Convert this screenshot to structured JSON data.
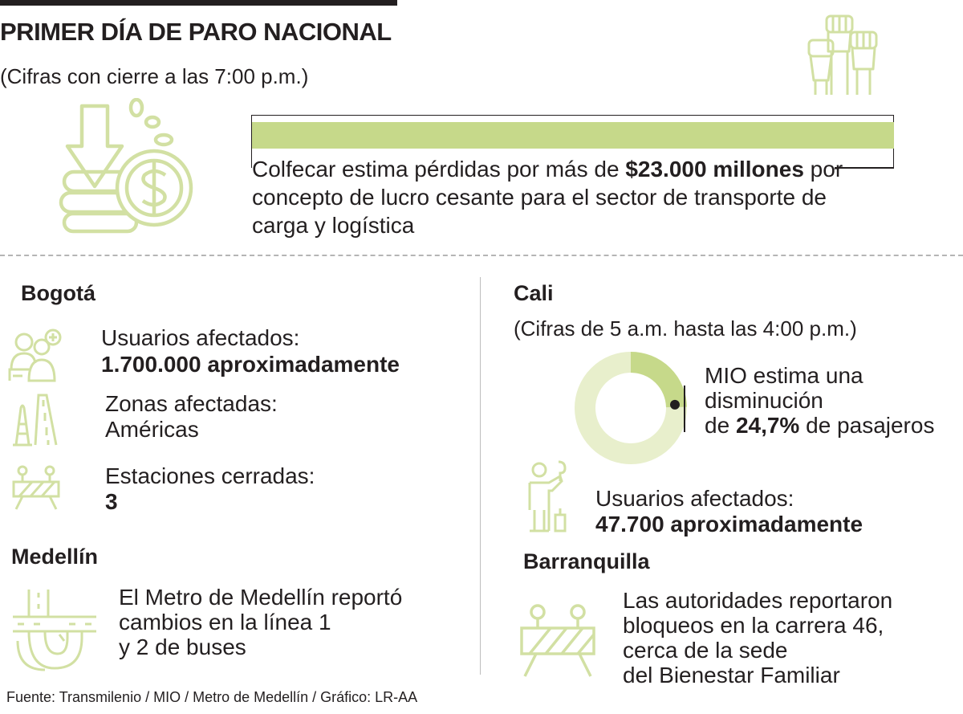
{
  "header": {
    "title": "PRIMER DÍA DE PARO NACIONAL",
    "subtitle": "(Cifras con cierre a las 7:00 p.m.)"
  },
  "summary": {
    "text_before": "Colfecar estima pérdidas por más de ",
    "highlight": "$23.000 millones",
    "text_after": " por concepto de lucro cesante para el sector de transporte de carga y logística"
  },
  "bogota": {
    "title": "Bogotá",
    "items": [
      {
        "label": "Usuarios afectados:",
        "value": "1.700.000 aproximadamente",
        "icon": "users-icon"
      },
      {
        "label": "Zonas afectadas:",
        "value": "Américas",
        "icon": "road-cone-icon"
      },
      {
        "label": "Estaciones cerradas:",
        "value": "3",
        "icon": "barrier-icon"
      }
    ]
  },
  "medellin": {
    "title": "Medellín",
    "text": "El Metro de Medellín reportó cambios en la línea 1 y 2 de buses",
    "lines": [
      "El Metro de Medellín reportó",
      "cambios en la línea 1",
      "y 2 de buses"
    ],
    "icon": "highway-interchange-icon"
  },
  "cali": {
    "title": "Cali",
    "note": "(Cifras de 5 a.m. hasta las 4:00 p.m.)",
    "mio": {
      "line1": "MIO estima una",
      "line2": "disminución",
      "prefix": "de ",
      "value_label": "24,7%",
      "suffix": " de pasajeros",
      "percent": 24.7
    },
    "users_label": "Usuarios afectados:",
    "users_value": "47.700 aproximadamente",
    "icon": "worker-icon"
  },
  "barranquilla": {
    "title": "Barranquilla",
    "lines": [
      "Las autoridades reportaron",
      "bloqueos en la carrera 46,",
      "cerca de la sede",
      "del Bienestar Familiar"
    ],
    "icon": "barrier-icon"
  },
  "footer": {
    "source": "Fuente: Transmilenio / MIO / Metro de Medellín / Gráfico: LR-AA"
  },
  "colors": {
    "accent": "#c6d98a",
    "accent_light": "#e8efcc",
    "icon_stroke": "#d2e0a3",
    "text": "#231f20"
  }
}
